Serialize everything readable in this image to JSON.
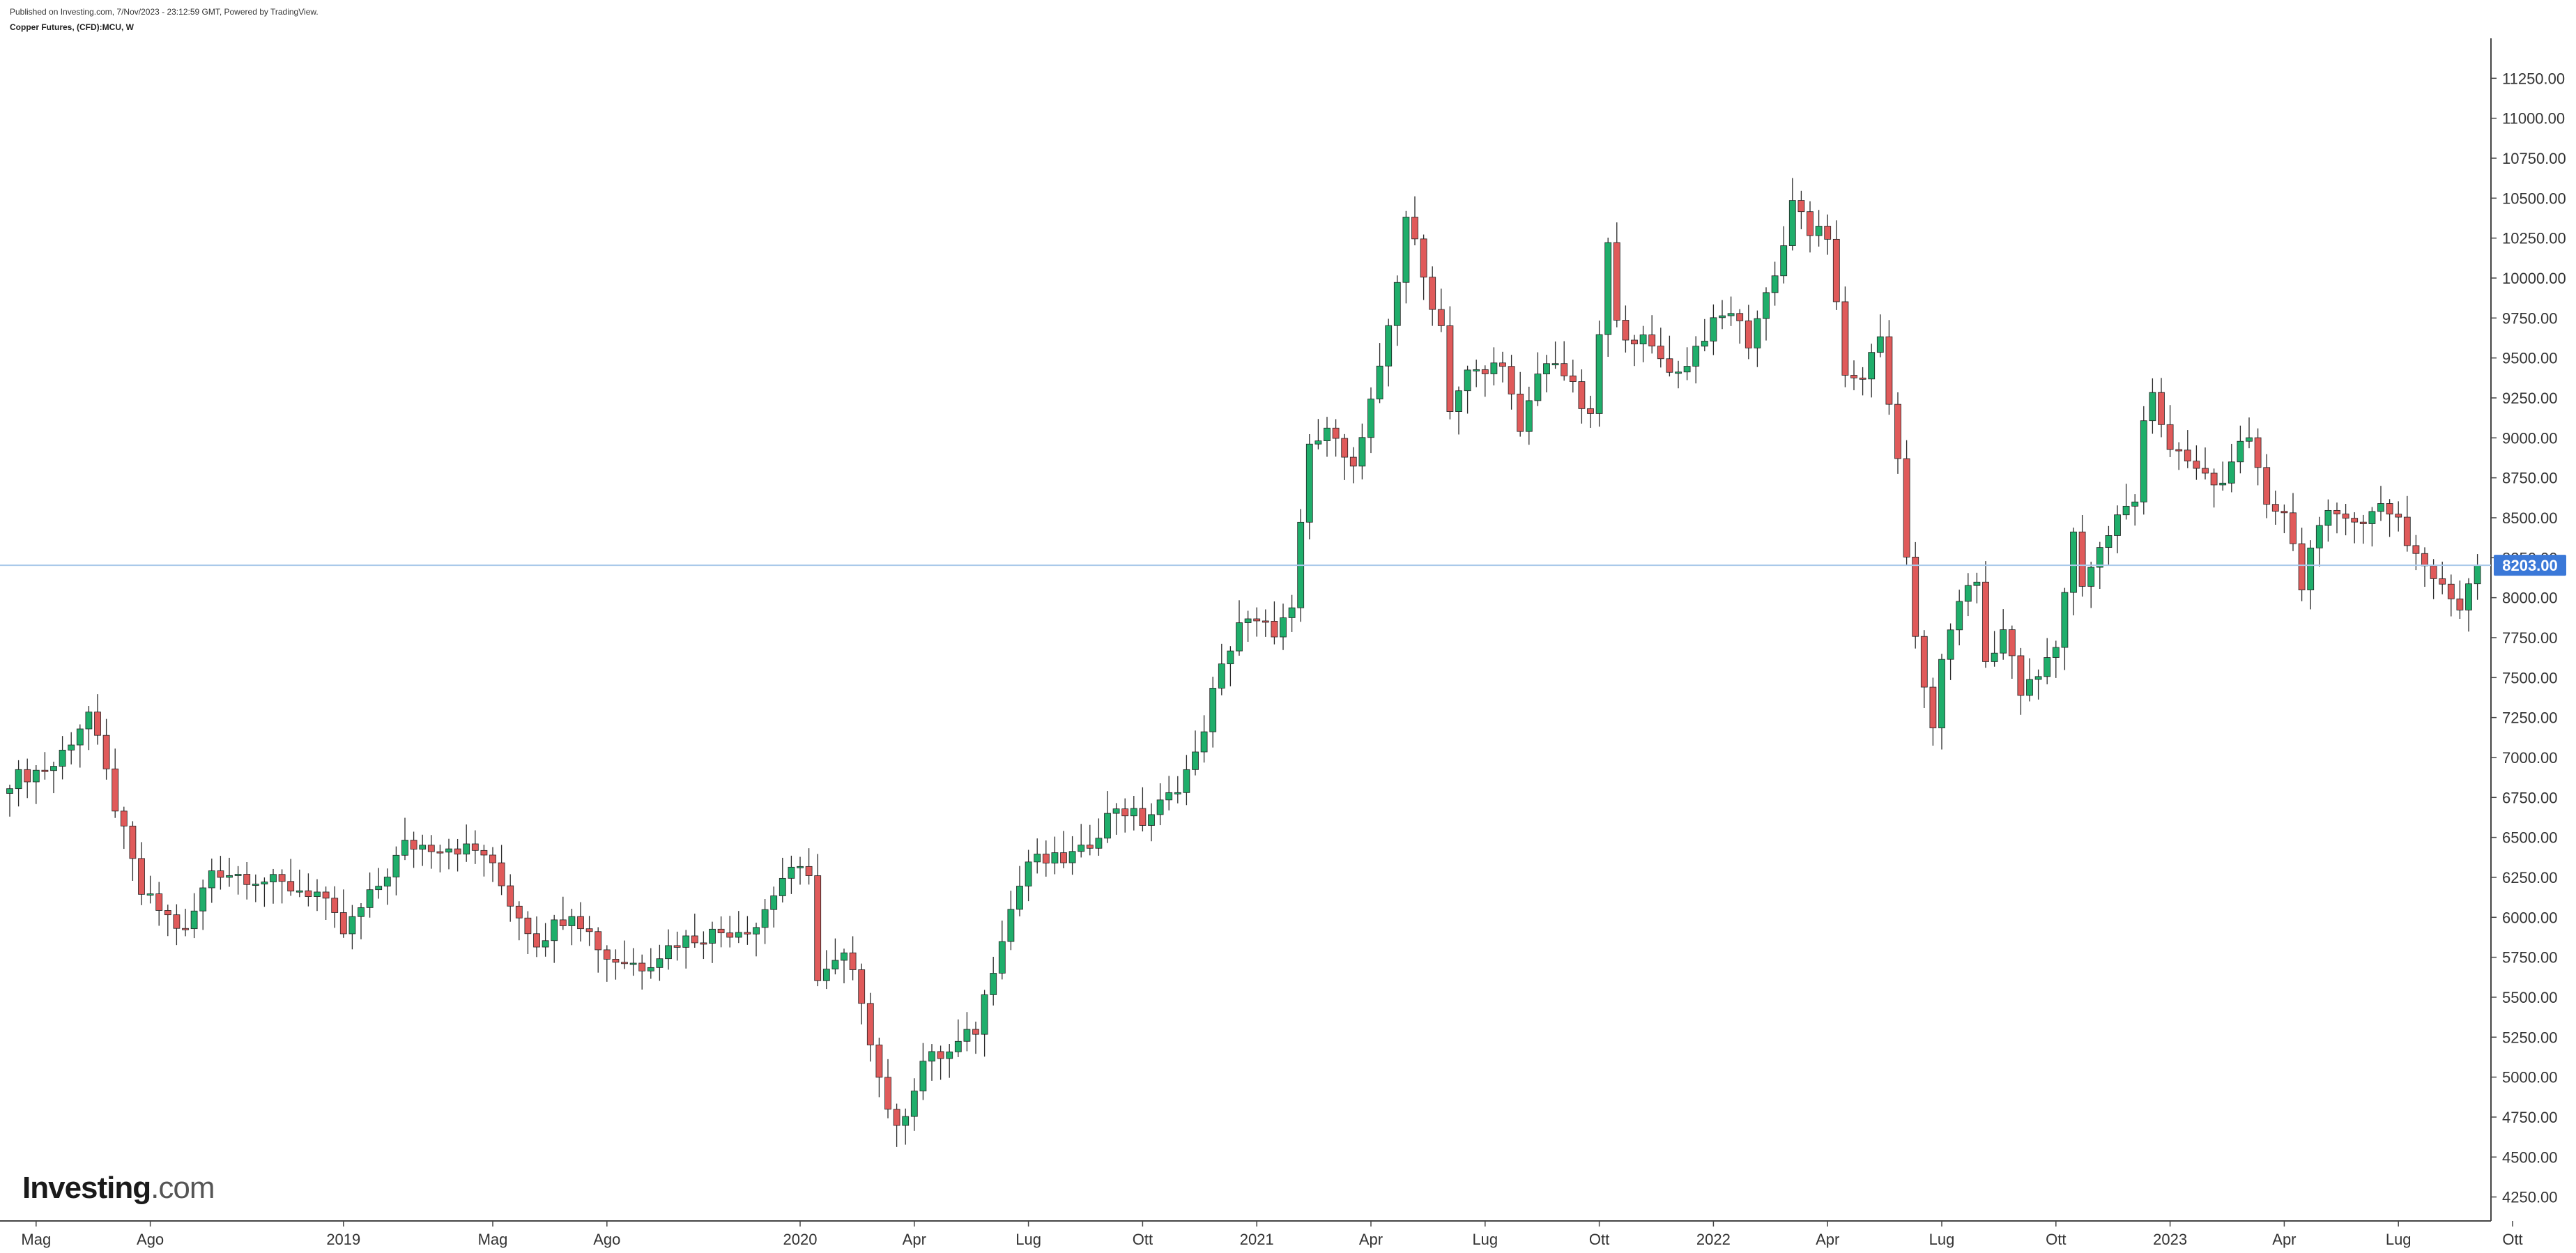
{
  "header": {
    "published": "Published on Investing.com, 7/Nov/2023 - 23:12:59 GMT, Powered by TradingView.",
    "symbol": "Copper Futures, (CFD):MCU, W"
  },
  "logo": {
    "bold": "Investing",
    "light": ".com"
  },
  "colors": {
    "up": "#1fae6b",
    "down": "#e05a5a",
    "wick": "#2a2a2a",
    "last_line": "#aac9ea",
    "last_badge": "#3a78d8"
  },
  "chart_data": {
    "type": "candlestick",
    "timeframe": "W",
    "y_ticks": [
      "4250.00",
      "4500.00",
      "4750.00",
      "5000.00",
      "5250.00",
      "5500.00",
      "5750.00",
      "6000.00",
      "6250.00",
      "6500.00",
      "6750.00",
      "7000.00",
      "7250.00",
      "7500.00",
      "7750.00",
      "8000.00",
      "8250.00",
      "8500.00",
      "8750.00",
      "9000.00",
      "9250.00",
      "9500.00",
      "9750.00",
      "10000.00",
      "10250.00",
      "10500.00",
      "10750.00",
      "11000.00",
      "11250.00"
    ],
    "ylim": [
      4100,
      11500
    ],
    "last_price": "8203.00",
    "x_ticks": [
      {
        "label": "Mag",
        "t": 3
      },
      {
        "label": "Ago",
        "t": 16
      },
      {
        "label": "2019",
        "t": 38
      },
      {
        "label": "Mag",
        "t": 55
      },
      {
        "label": "Ago",
        "t": 68
      },
      {
        "label": "2020",
        "t": 90
      },
      {
        "label": "Apr",
        "t": 103
      },
      {
        "label": "Lug",
        "t": 116
      },
      {
        "label": "Ott",
        "t": 129
      },
      {
        "label": "2021",
        "t": 142
      },
      {
        "label": "Apr",
        "t": 155
      },
      {
        "label": "Lug",
        "t": 168
      },
      {
        "label": "Ott",
        "t": 181
      },
      {
        "label": "2022",
        "t": 194
      },
      {
        "label": "Apr",
        "t": 207
      },
      {
        "label": "Lug",
        "t": 220
      },
      {
        "label": "Ott",
        "t": 233
      },
      {
        "label": "2023",
        "t": 246
      },
      {
        "label": "Apr",
        "t": 259
      },
      {
        "label": "Lug",
        "t": 272
      },
      {
        "label": "Ott",
        "t": 285
      }
    ],
    "anchors": [
      [
        0,
        6860
      ],
      [
        5,
        6950
      ],
      [
        9,
        7280
      ],
      [
        12,
        6700
      ],
      [
        15,
        6150
      ],
      [
        17,
        6050
      ],
      [
        20,
        5900
      ],
      [
        23,
        6300
      ],
      [
        27,
        6260
      ],
      [
        31,
        6200
      ],
      [
        35,
        6150
      ],
      [
        38,
        5900
      ],
      [
        42,
        6200
      ],
      [
        45,
        6450
      ],
      [
        50,
        6450
      ],
      [
        54,
        6400
      ],
      [
        57,
        6100
      ],
      [
        60,
        5850
      ],
      [
        64,
        6050
      ],
      [
        68,
        5750
      ],
      [
        72,
        5700
      ],
      [
        76,
        5850
      ],
      [
        80,
        5900
      ],
      [
        85,
        5950
      ],
      [
        88,
        6250
      ],
      [
        91,
        6300
      ],
      [
        92,
        5600
      ],
      [
        95,
        5750
      ],
      [
        97,
        5500
      ],
      [
        99,
        5000
      ],
      [
        101,
        4650
      ],
      [
        104,
        5100
      ],
      [
        107,
        5150
      ],
      [
        110,
        5300
      ],
      [
        113,
        5900
      ],
      [
        116,
        6350
      ],
      [
        119,
        6350
      ],
      [
        122,
        6400
      ],
      [
        126,
        6700
      ],
      [
        129,
        6600
      ],
      [
        132,
        6750
      ],
      [
        135,
        7000
      ],
      [
        137,
        7400
      ],
      [
        140,
        7850
      ],
      [
        144,
        7800
      ],
      [
        146,
        7900
      ],
      [
        148,
        8950
      ],
      [
        151,
        9050
      ],
      [
        153,
        8800
      ],
      [
        156,
        9400
      ],
      [
        158,
        10000
      ],
      [
        159,
        10400
      ],
      [
        161,
        10000
      ],
      [
        163,
        9700
      ],
      [
        164,
        9200
      ],
      [
        166,
        9400
      ],
      [
        168,
        9400
      ],
      [
        170,
        9500
      ],
      [
        172,
        9000
      ],
      [
        174,
        9400
      ],
      [
        176,
        9500
      ],
      [
        178,
        9300
      ],
      [
        180,
        9100
      ],
      [
        182,
        10200
      ],
      [
        183,
        9700
      ],
      [
        186,
        9600
      ],
      [
        188,
        9500
      ],
      [
        190,
        9400
      ],
      [
        193,
        9650
      ],
      [
        196,
        9800
      ],
      [
        198,
        9600
      ],
      [
        200,
        9900
      ],
      [
        202,
        10200
      ],
      [
        203,
        10500
      ],
      [
        205,
        10250
      ],
      [
        206,
        10350
      ],
      [
        207,
        10200
      ],
      [
        208,
        9800
      ],
      [
        209,
        9400
      ],
      [
        211,
        9400
      ],
      [
        213,
        9600
      ],
      [
        214,
        9200
      ],
      [
        215,
        8900
      ],
      [
        216,
        8200
      ],
      [
        217,
        7800
      ],
      [
        218,
        7400
      ],
      [
        219,
        7200
      ],
      [
        220,
        7600
      ],
      [
        222,
        8000
      ],
      [
        224,
        8100
      ],
      [
        225,
        7600
      ],
      [
        227,
        7800
      ],
      [
        229,
        7400
      ],
      [
        231,
        7500
      ],
      [
        233,
        7700
      ],
      [
        235,
        8400
      ],
      [
        236,
        8100
      ],
      [
        238,
        8300
      ],
      [
        240,
        8500
      ],
      [
        242,
        8600
      ],
      [
        243,
        9150
      ],
      [
        244,
        9300
      ],
      [
        246,
        8900
      ],
      [
        248,
        8850
      ],
      [
        250,
        8750
      ],
      [
        252,
        8700
      ],
      [
        253,
        8900
      ],
      [
        255,
        8950
      ],
      [
        257,
        8600
      ],
      [
        259,
        8550
      ],
      [
        261,
        8100
      ],
      [
        262,
        8300
      ],
      [
        264,
        8500
      ],
      [
        266,
        8550
      ],
      [
        268,
        8450
      ],
      [
        270,
        8600
      ],
      [
        272,
        8500
      ],
      [
        273,
        8350
      ],
      [
        275,
        8200
      ],
      [
        277,
        8050
      ],
      [
        279,
        7950
      ],
      [
        280,
        8100
      ],
      [
        281,
        8203
      ]
    ]
  }
}
